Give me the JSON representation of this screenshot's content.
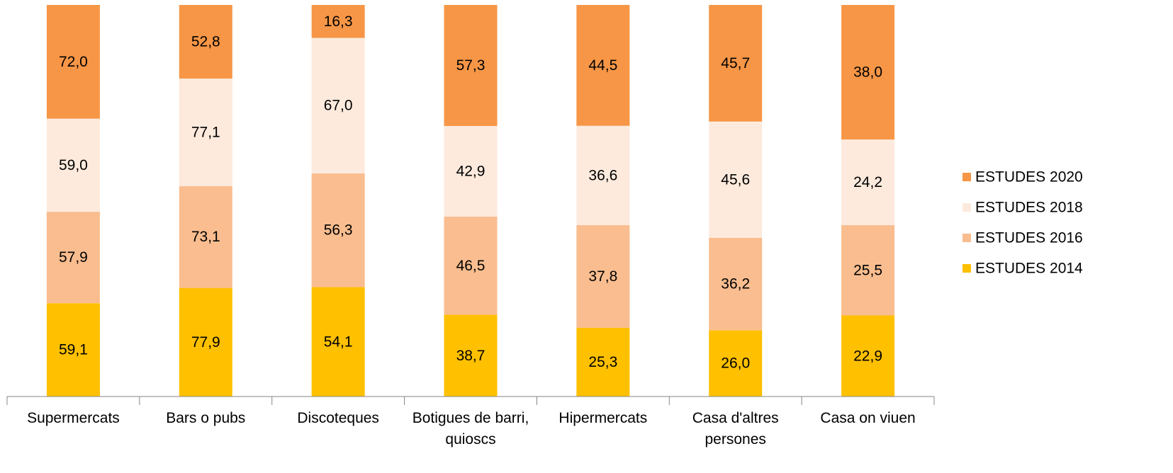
{
  "chart_data": {
    "type": "bar",
    "stacked": "percent",
    "categories": [
      "Supermercats",
      "Bars o pubs",
      "Discoteques",
      "Botigues de barri, quioscs",
      "Hipermercats",
      "Casa d'altres persones",
      "Casa on viuen"
    ],
    "series": [
      {
        "name": "ESTUDES 2014",
        "color": "#ffc000",
        "values": [
          59.1,
          77.9,
          54.1,
          38.7,
          25.3,
          26.0,
          22.9
        ],
        "value_labels": [
          "59,1",
          "77,9",
          "54,1",
          "38,7",
          "25,3",
          "26,0",
          "22,9"
        ]
      },
      {
        "name": "ESTUDES 2016",
        "color": "#f9bd8f",
        "values": [
          57.9,
          73.1,
          56.3,
          46.5,
          37.8,
          36.2,
          25.5
        ],
        "value_labels": [
          "57,9",
          "73,1",
          "56,3",
          "46,5",
          "37,8",
          "36,2",
          "25,5"
        ]
      },
      {
        "name": "ESTUDES 2018",
        "color": "#fdeadd",
        "values": [
          59.0,
          77.1,
          67.0,
          42.9,
          36.6,
          45.6,
          24.2
        ],
        "value_labels": [
          "59,0",
          "77,1",
          "67,0",
          "42,9",
          "36,6",
          "45,6",
          "24,2"
        ]
      },
      {
        "name": "ESTUDES 2020",
        "color": "#f79646",
        "values": [
          72.0,
          52.8,
          16.3,
          57.3,
          44.5,
          45.7,
          38.0
        ],
        "value_labels": [
          "72,0",
          "52,8",
          "16,3",
          "57,3",
          "44,5",
          "45,7",
          "38,0"
        ]
      }
    ],
    "legend": "right"
  }
}
